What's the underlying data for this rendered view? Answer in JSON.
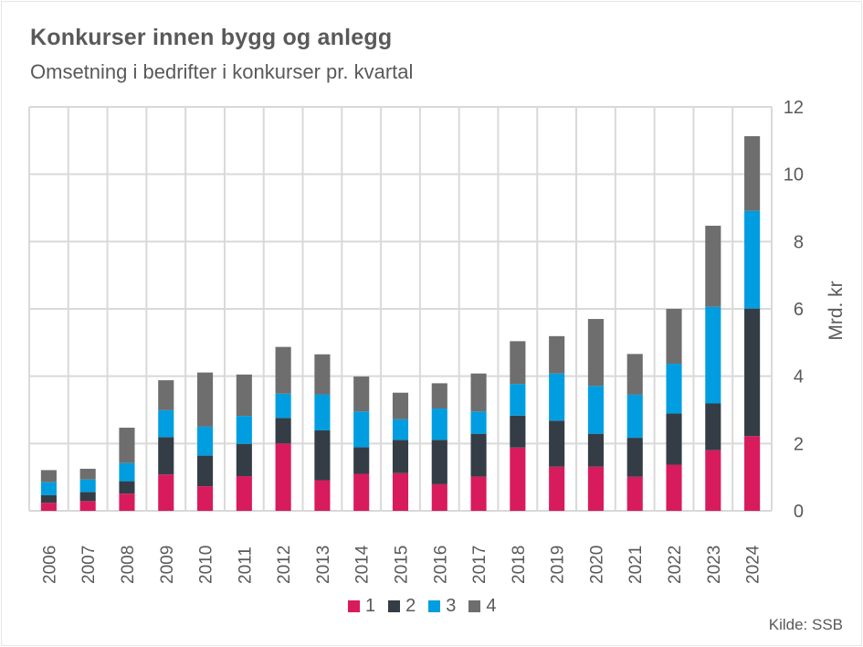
{
  "header": {
    "title": "Konkurser innen bygg og anlegg",
    "subtitle": "Omsetning i bedrifter i konkurser pr. kvartal"
  },
  "footer": {
    "source": "Kilde: SSB"
  },
  "colors": {
    "q1": "#d81b5c",
    "q2": "#343d46",
    "q3": "#009ee0",
    "q4": "#6e6e6e",
    "grid": "#d9d9d9",
    "text": "#595959"
  },
  "chart_data": {
    "type": "bar",
    "stacked": true,
    "title": "Konkurser innen bygg og anlegg",
    "subtitle": "Omsetning i bedrifter i konkurser pr. kvartal",
    "xlabel": "",
    "ylabel": "Mrd. kr",
    "y_axis_side": "right",
    "ylim": [
      0,
      12
    ],
    "yticks": [
      0,
      2,
      4,
      6,
      8,
      10,
      12
    ],
    "grid": true,
    "legend_position": "bottom",
    "categories": [
      "2006",
      "2007",
      "2008",
      "2009",
      "2010",
      "2011",
      "2012",
      "2013",
      "2014",
      "2015",
      "2016",
      "2017",
      "2018",
      "2019",
      "2020",
      "2021",
      "2022",
      "2023",
      "2024"
    ],
    "series": [
      {
        "name": "1",
        "color": "#d81b5c",
        "values": [
          0.24,
          0.29,
          0.51,
          1.08,
          0.73,
          1.03,
          2.0,
          0.91,
          1.1,
          1.12,
          0.79,
          1.02,
          1.88,
          1.31,
          1.31,
          1.01,
          1.37,
          1.8,
          2.22
        ]
      },
      {
        "name": "2",
        "color": "#343d46",
        "values": [
          0.23,
          0.27,
          0.37,
          1.11,
          0.91,
          0.96,
          0.76,
          1.48,
          0.79,
          0.99,
          1.32,
          1.27,
          0.95,
          1.37,
          0.98,
          1.16,
          1.52,
          1.39,
          3.79
        ]
      },
      {
        "name": "3",
        "color": "#009ee0",
        "values": [
          0.38,
          0.37,
          0.54,
          0.8,
          0.86,
          0.83,
          0.72,
          1.07,
          1.06,
          0.61,
          0.93,
          0.66,
          0.94,
          1.4,
          1.42,
          1.28,
          1.48,
          2.87,
          2.9
        ]
      },
      {
        "name": "4",
        "color": "#6e6e6e",
        "values": [
          0.36,
          0.32,
          1.05,
          0.89,
          1.61,
          1.23,
          1.39,
          1.19,
          1.04,
          0.79,
          0.75,
          1.13,
          1.27,
          1.11,
          1.99,
          1.21,
          1.63,
          2.41,
          2.22
        ]
      }
    ]
  }
}
